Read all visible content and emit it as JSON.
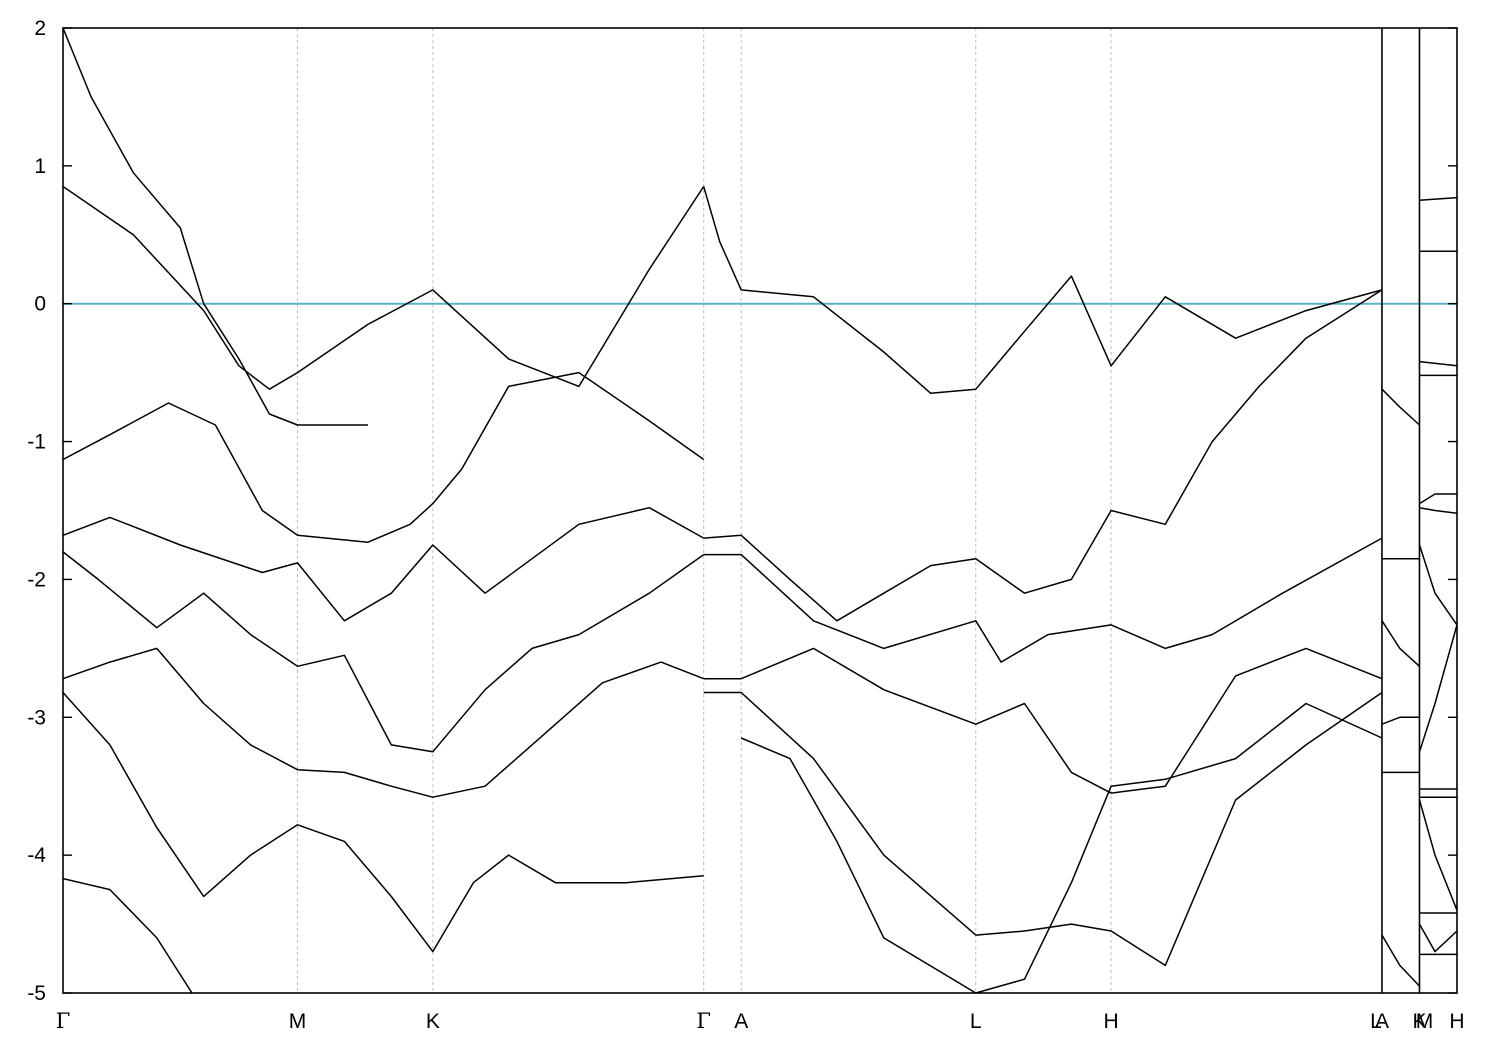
{
  "chart_data": {
    "type": "line",
    "title": "",
    "xlabel": "",
    "ylabel": "",
    "ylim": [
      -5,
      2
    ],
    "yticks": [
      -5,
      -4,
      -3,
      -2,
      -1,
      0,
      1,
      2
    ],
    "grid": "vertical dashed lines at high-symmetry points",
    "fermi_level": {
      "value": 0,
      "color": "#5ab4c8"
    },
    "band_color": "#000000",
    "kpoints": [
      {
        "label": "Γ",
        "x": 0.0
      },
      {
        "label": "M",
        "x": 1.0
      },
      {
        "label": "K",
        "x": 1.577
      },
      {
        "label": "Γ",
        "x": 2.732
      },
      {
        "label": "A",
        "x": 2.892
      },
      {
        "label": "L",
        "x": 3.892
      },
      {
        "label": "H",
        "x": 4.469
      },
      {
        "label": "A",
        "x": 5.624
      },
      {
        "label": "L",
        "x": 5.624
      },
      {
        "label": "M",
        "x": 5.784
      },
      {
        "label": "K",
        "x": 5.784
      },
      {
        "label": "H",
        "x": 5.944
      }
    ],
    "segment_breaks": [
      5.624,
      5.784
    ],
    "series": [
      {
        "x": [
          0.0,
          0.3,
          0.6,
          0.75,
          0.88,
          1.0,
          1.3,
          1.577,
          1.9,
          2.2,
          2.5,
          2.732
        ],
        "y": [
          0.85,
          0.5,
          -0.05,
          -0.45,
          -0.62,
          -0.5,
          -0.15,
          0.1,
          -0.4,
          -0.6,
          0.25,
          0.85
        ]
      },
      {
        "x": [
          0.0,
          0.2,
          0.45,
          0.65,
          0.85,
          1.0,
          1.3,
          1.48,
          1.577,
          1.7,
          1.9,
          2.2,
          2.5,
          2.732
        ],
        "y": [
          -1.13,
          -0.95,
          -0.72,
          -0.88,
          -1.5,
          -1.68,
          -1.73,
          -1.6,
          -1.45,
          -1.2,
          -0.6,
          -0.5,
          -0.85,
          -1.13
        ]
      },
      {
        "x": [
          0.0,
          0.2,
          0.5,
          0.85,
          1.0,
          1.2,
          1.4,
          1.577,
          1.8,
          2.2,
          2.5,
          2.732
        ],
        "y": [
          -1.68,
          -1.55,
          -1.75,
          -1.95,
          -1.88,
          -2.3,
          -2.1,
          -1.75,
          -2.1,
          -1.6,
          -1.48,
          -1.7
        ]
      },
      {
        "x": [
          0.0,
          0.15,
          0.4,
          0.6,
          0.8,
          1.0,
          1.2,
          1.4,
          1.577,
          1.8,
          2.0,
          2.2,
          2.5,
          2.732
        ],
        "y": [
          -1.8,
          -2.0,
          -2.35,
          -2.1,
          -2.4,
          -2.63,
          -2.55,
          -3.2,
          -3.25,
          -2.8,
          -2.5,
          -2.4,
          -2.1,
          -1.82
        ]
      },
      {
        "x": [
          0.0,
          0.2,
          0.4,
          0.6,
          0.8,
          1.0,
          1.2,
          1.4,
          1.577,
          1.8,
          2.0,
          2.3,
          2.55,
          2.732
        ],
        "y": [
          -2.72,
          -2.6,
          -2.5,
          -2.9,
          -3.2,
          -3.38,
          -3.4,
          -3.5,
          -3.58,
          -3.5,
          -3.2,
          -2.75,
          -2.6,
          -2.72
        ]
      },
      {
        "x": [
          0.0,
          0.2,
          0.4,
          0.6,
          0.8,
          1.0,
          1.2,
          1.4,
          1.577,
          1.75,
          1.9,
          2.1,
          2.4,
          2.732
        ],
        "y": [
          -2.82,
          -3.2,
          -3.8,
          -4.3,
          -4.0,
          -3.78,
          -3.9,
          -4.3,
          -4.7,
          -4.2,
          -4.0,
          -4.2,
          -4.2,
          -4.15
        ]
      },
      {
        "x": [
          0.0,
          0.2,
          0.4,
          0.55
        ],
        "y": [
          -4.17,
          -4.25,
          -4.6,
          -5.0
        ]
      },
      {
        "x": [
          0.0,
          0.12,
          0.3,
          0.5,
          0.6,
          0.75,
          0.88,
          1.0,
          1.3
        ],
        "y": [
          2.0,
          1.5,
          0.95,
          0.55,
          0.0,
          -0.4,
          -0.8,
          -0.88,
          -0.88
        ]
      },
      {
        "x": [
          2.732,
          2.8,
          2.892,
          3.2,
          3.5,
          3.7,
          3.892,
          4.1,
          4.3,
          4.469,
          4.7,
          5.0,
          5.3,
          5.624
        ],
        "y": [
          0.85,
          0.45,
          0.1,
          0.05,
          -0.35,
          -0.65,
          -0.62,
          -0.2,
          0.2,
          -0.45,
          0.05,
          -0.25,
          -0.05,
          0.1
        ]
      },
      {
        "x": [
          2.732,
          2.892,
          3.1,
          3.3,
          3.5,
          3.7,
          3.892,
          4.1,
          4.3,
          4.469,
          4.7,
          4.9,
          5.1,
          5.3,
          5.624
        ],
        "y": [
          -1.7,
          -1.68,
          -2.0,
          -2.3,
          -2.1,
          -1.9,
          -1.85,
          -2.1,
          -2.0,
          -1.5,
          -1.6,
          -1.0,
          -0.6,
          -0.25,
          0.1
        ]
      },
      {
        "x": [
          2.732,
          2.892,
          3.2,
          3.5,
          3.892,
          4.0,
          4.2,
          4.469,
          4.7,
          4.9,
          5.2,
          5.624
        ],
        "y": [
          -1.82,
          -1.82,
          -2.3,
          -2.5,
          -2.3,
          -2.6,
          -2.4,
          -2.33,
          -2.5,
          -2.4,
          -2.1,
          -1.7
        ]
      },
      {
        "x": [
          2.732,
          2.892,
          3.2,
          3.5,
          3.892,
          4.1,
          4.3,
          4.469,
          4.7,
          5.0,
          5.3,
          5.624
        ],
        "y": [
          -2.72,
          -2.72,
          -2.5,
          -2.8,
          -3.05,
          -2.9,
          -3.4,
          -3.55,
          -3.5,
          -2.7,
          -2.5,
          -2.72
        ]
      },
      {
        "x": [
          2.732,
          2.892,
          3.2,
          3.5,
          3.892,
          4.1,
          4.3,
          4.469,
          4.7,
          5.0,
          5.3,
          5.624
        ],
        "y": [
          -2.82,
          -2.82,
          -3.3,
          -4.0,
          -4.58,
          -4.55,
          -4.5,
          -4.55,
          -4.8,
          -3.6,
          -3.2,
          -2.82
        ]
      },
      {
        "x": [
          2.892,
          3.1,
          3.3,
          3.5,
          3.892,
          4.1,
          4.3,
          4.469,
          4.7,
          5.0,
          5.3,
          5.624
        ],
        "y": [
          -3.15,
          -3.3,
          -3.9,
          -4.6,
          -5.0,
          -4.9,
          -4.2,
          -3.5,
          -3.45,
          -3.3,
          -2.9,
          -3.15
        ]
      },
      {
        "x": [
          5.624,
          5.7,
          5.784
        ],
        "y": [
          -0.62,
          -0.75,
          -0.88
        ]
      },
      {
        "x": [
          5.624,
          5.784
        ],
        "y": [
          -1.85,
          -1.85
        ]
      },
      {
        "x": [
          5.624,
          5.7,
          5.784
        ],
        "y": [
          -2.3,
          -2.5,
          -2.63
        ]
      },
      {
        "x": [
          5.624,
          5.7,
          5.784
        ],
        "y": [
          -3.05,
          -3.0,
          -3.0
        ]
      },
      {
        "x": [
          5.624,
          5.784
        ],
        "y": [
          -3.4,
          -3.4
        ]
      },
      {
        "x": [
          5.624,
          5.7,
          5.784
        ],
        "y": [
          -4.58,
          -4.8,
          -4.95
        ]
      },
      {
        "x": [
          5.784,
          5.944
        ],
        "y": [
          0.75,
          0.77
        ]
      },
      {
        "x": [
          5.784,
          5.944
        ],
        "y": [
          0.38,
          0.38
        ]
      },
      {
        "x": [
          5.784,
          5.944
        ],
        "y": [
          -0.42,
          -0.45
        ]
      },
      {
        "x": [
          5.784,
          5.944
        ],
        "y": [
          -0.52,
          -0.52
        ]
      },
      {
        "x": [
          5.784,
          5.85,
          5.944
        ],
        "y": [
          -1.45,
          -1.38,
          -1.38
        ]
      },
      {
        "x": [
          5.784,
          5.85,
          5.944
        ],
        "y": [
          -1.48,
          -1.5,
          -1.52
        ]
      },
      {
        "x": [
          5.784,
          5.85,
          5.944
        ],
        "y": [
          -1.75,
          -2.1,
          -2.33
        ]
      },
      {
        "x": [
          5.784,
          5.85,
          5.944
        ],
        "y": [
          -3.25,
          -2.9,
          -2.33
        ]
      },
      {
        "x": [
          5.784,
          5.944
        ],
        "y": [
          -3.52,
          -3.52
        ]
      },
      {
        "x": [
          5.784,
          5.944
        ],
        "y": [
          -3.58,
          -3.58
        ]
      },
      {
        "x": [
          5.784,
          5.85,
          5.944
        ],
        "y": [
          -3.6,
          -4.0,
          -4.4
        ]
      },
      {
        "x": [
          5.784,
          5.944
        ],
        "y": [
          -4.42,
          -4.42
        ]
      },
      {
        "x": [
          5.784,
          5.85,
          5.944
        ],
        "y": [
          -4.5,
          -4.7,
          -4.55
        ]
      },
      {
        "x": [
          5.784,
          5.944
        ],
        "y": [
          -4.72,
          -4.72
        ]
      }
    ]
  }
}
